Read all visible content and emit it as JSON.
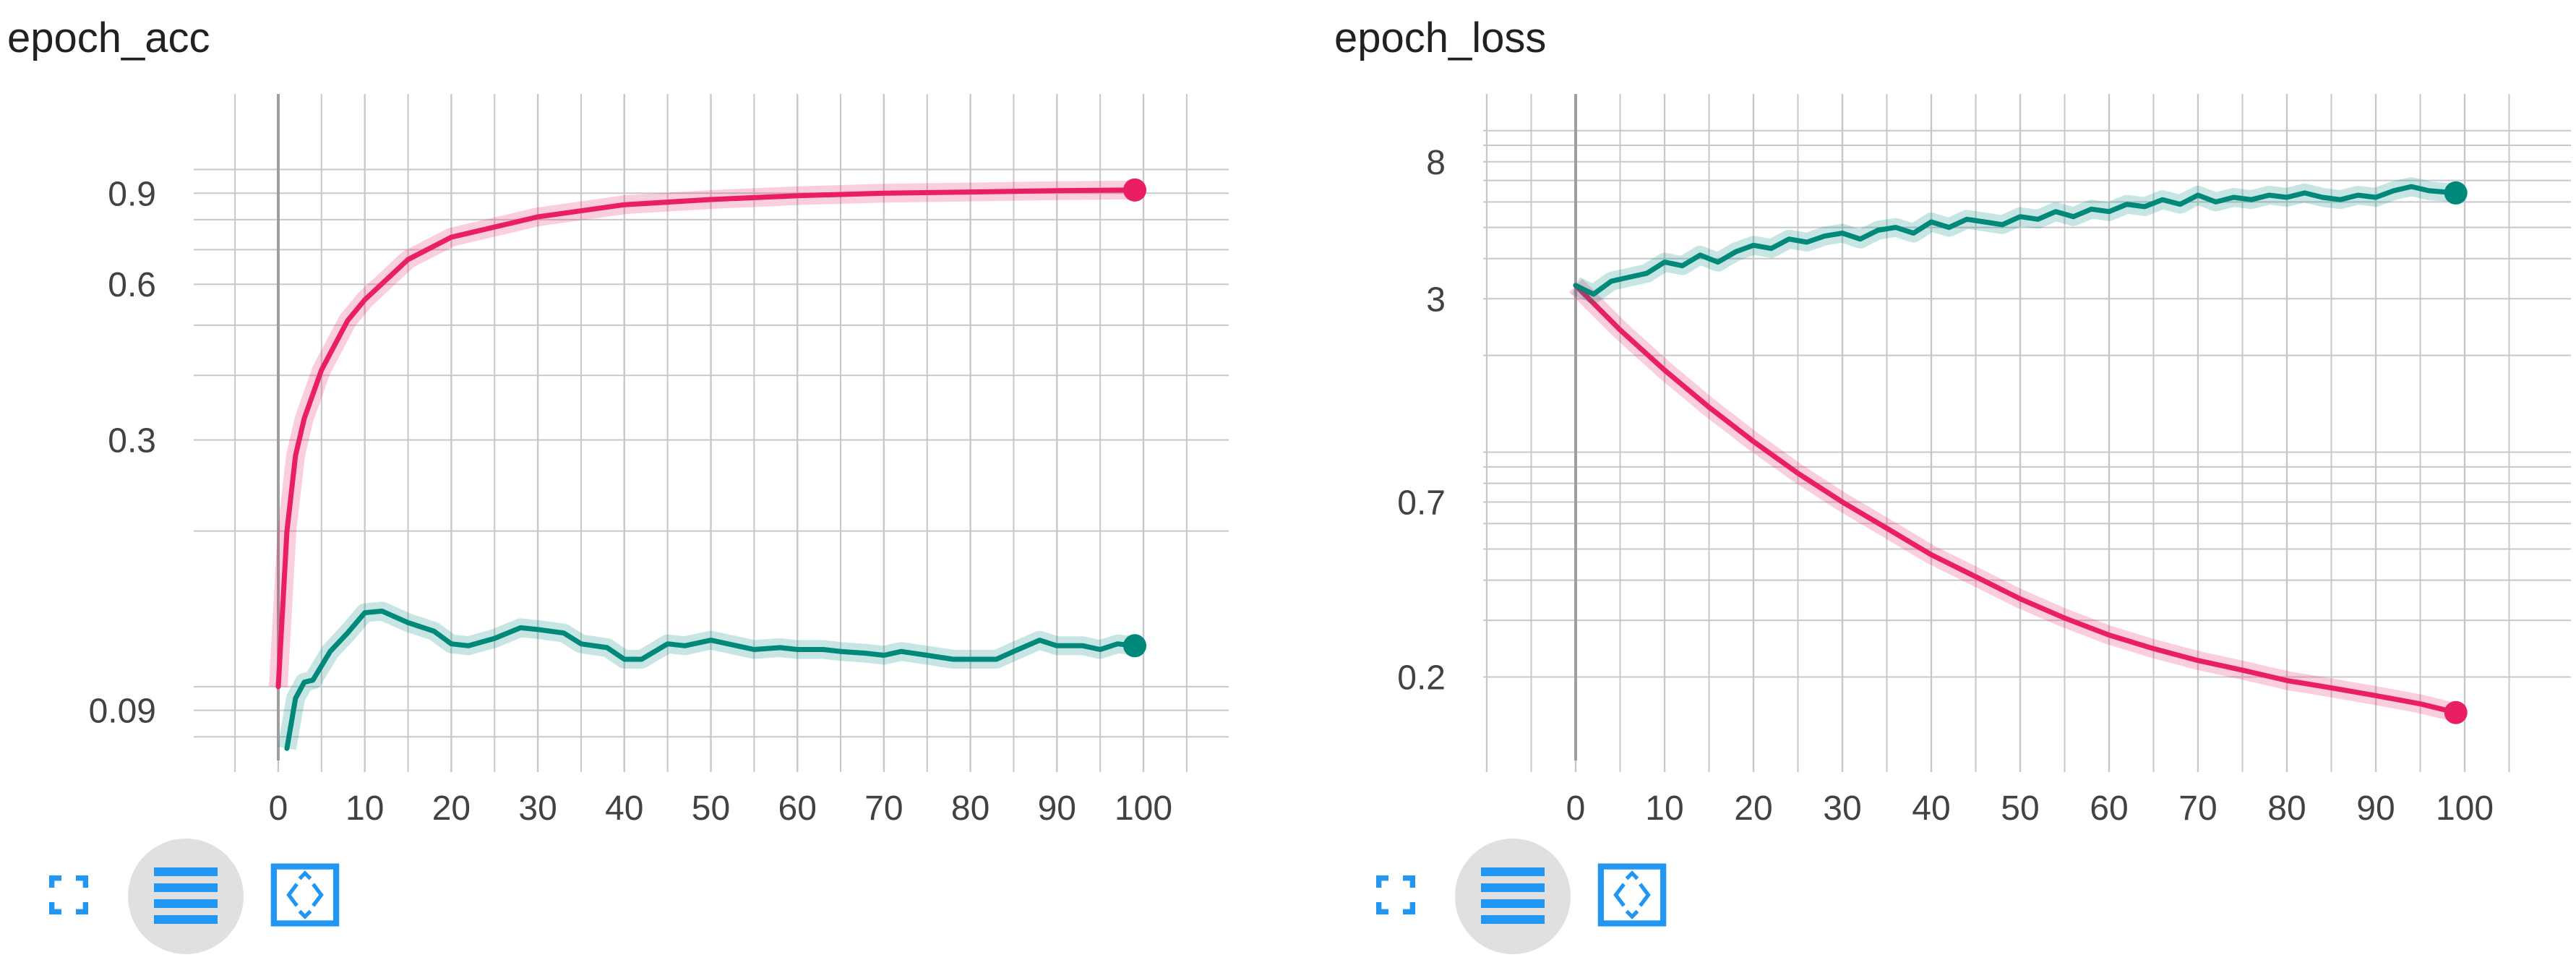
{
  "colors": {
    "pink": "#e91e63",
    "teal": "#00897b",
    "icon": "#2196f3",
    "grid": "#c8c8c8",
    "axis": "#9e9e9e"
  },
  "buttons": {
    "expand_icon": "fullscreen-icon",
    "menu_icon": "lines-icon",
    "fit_icon": "fit-domain-icon"
  },
  "charts": [
    {
      "title": "epoch_acc",
      "chart_data": {
        "type": "line",
        "title": "epoch_acc",
        "xlabel": "",
        "ylabel": "",
        "y_scale": "log",
        "x_ticks": [
          "0",
          "10",
          "20",
          "30",
          "40",
          "50",
          "60",
          "70",
          "80",
          "90",
          "100"
        ],
        "y_ticks": [
          {
            "label": "0.9",
            "value": 0.9
          },
          {
            "label": "0.6",
            "value": 0.6
          },
          {
            "label": "0.3",
            "value": 0.3
          },
          {
            "label": "0.09",
            "value": 0.09
          }
        ],
        "xlim": [
          -10,
          110
        ],
        "ylim": [
          0.072,
          1.4
        ],
        "series": [
          {
            "color": "#e91e63",
            "x": [
              0,
              1,
              2,
              3,
              5,
              8,
              10,
              15,
              20,
              30,
              40,
              50,
              60,
              70,
              80,
              90,
              99
            ],
            "y": [
              0.1,
              0.2,
              0.28,
              0.33,
              0.41,
              0.51,
              0.56,
              0.67,
              0.74,
              0.81,
              0.855,
              0.875,
              0.89,
              0.9,
              0.905,
              0.91,
              0.913
            ]
          },
          {
            "color": "#00897b",
            "x": [
              1,
              2,
              3,
              4,
              6,
              8,
              10,
              12,
              15,
              18,
              20,
              22,
              25,
              28,
              30,
              33,
              35,
              38,
              40,
              42,
              45,
              47,
              50,
              55,
              58,
              60,
              63,
              65,
              68,
              70,
              72,
              75,
              78,
              80,
              83,
              85,
              88,
              90,
              93,
              95,
              97,
              99
            ],
            "y": [
              0.076,
              0.095,
              0.102,
              0.103,
              0.117,
              0.127,
              0.139,
              0.14,
              0.133,
              0.128,
              0.121,
              0.12,
              0.124,
              0.13,
              0.129,
              0.127,
              0.121,
              0.119,
              0.113,
              0.113,
              0.121,
              0.12,
              0.123,
              0.118,
              0.119,
              0.118,
              0.118,
              0.117,
              0.116,
              0.115,
              0.117,
              0.115,
              0.113,
              0.113,
              0.113,
              0.117,
              0.123,
              0.12,
              0.12,
              0.118,
              0.121,
              0.12
            ]
          }
        ]
      }
    },
    {
      "title": "epoch_loss",
      "chart_data": {
        "type": "line",
        "title": "epoch_loss",
        "xlabel": "",
        "ylabel": "",
        "y_scale": "log",
        "x_ticks": [
          "0",
          "10",
          "20",
          "30",
          "40",
          "50",
          "60",
          "70",
          "80",
          "90",
          "100"
        ],
        "y_ticks": [
          {
            "label": "8",
            "value": 8
          },
          {
            "label": "3",
            "value": 3
          },
          {
            "label": "0.7",
            "value": 0.7
          },
          {
            "label": "0.2",
            "value": 0.2
          }
        ],
        "xlim": [
          -10,
          110
        ],
        "ylim": [
          0.11,
          13
        ],
        "series": [
          {
            "color": "#e91e63",
            "x": [
              0,
              5,
              10,
              15,
              20,
              25,
              30,
              35,
              40,
              45,
              50,
              55,
              60,
              65,
              70,
              75,
              80,
              85,
              90,
              95,
              99
            ],
            "y": [
              3.3,
              2.4,
              1.8,
              1.38,
              1.08,
              0.86,
              0.7,
              0.58,
              0.48,
              0.41,
              0.35,
              0.305,
              0.27,
              0.245,
              0.225,
              0.21,
              0.195,
              0.185,
              0.175,
              0.165,
              0.155
            ]
          },
          {
            "color": "#00897b",
            "x": [
              0,
              2,
              4,
              6,
              8,
              10,
              12,
              14,
              16,
              18,
              20,
              22,
              24,
              26,
              28,
              30,
              32,
              34,
              36,
              38,
              40,
              42,
              44,
              46,
              48,
              50,
              52,
              54,
              56,
              58,
              60,
              62,
              64,
              66,
              68,
              70,
              72,
              74,
              76,
              78,
              80,
              82,
              84,
              86,
              88,
              90,
              92,
              94,
              96,
              99
            ],
            "y": [
              3.3,
              3.1,
              3.4,
              3.5,
              3.6,
              3.9,
              3.8,
              4.1,
              3.9,
              4.2,
              4.4,
              4.3,
              4.6,
              4.5,
              4.7,
              4.8,
              4.6,
              4.9,
              5.0,
              4.8,
              5.2,
              5.0,
              5.3,
              5.2,
              5.1,
              5.4,
              5.3,
              5.6,
              5.4,
              5.7,
              5.6,
              5.9,
              5.8,
              6.1,
              5.9,
              6.3,
              6.0,
              6.2,
              6.1,
              6.3,
              6.2,
              6.4,
              6.2,
              6.1,
              6.3,
              6.2,
              6.5,
              6.7,
              6.5,
              6.4
            ]
          }
        ]
      }
    }
  ]
}
